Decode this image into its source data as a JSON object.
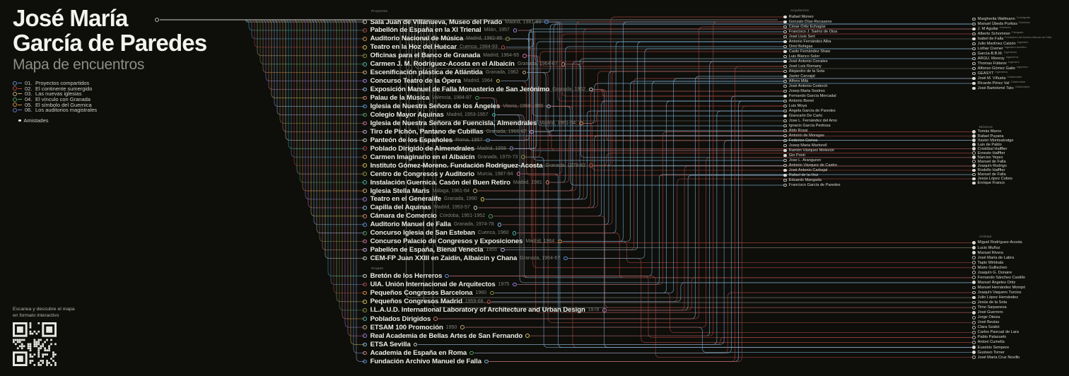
{
  "title": {
    "line1": "José María",
    "line2": "García de Paredes",
    "subtitle": "Mapa de encuentros"
  },
  "legend": {
    "items": [
      {
        "num": "01.",
        "label": "Proyectos compartidos",
        "color": "#5d8fd0"
      },
      {
        "num": "02.",
        "label": "El continente sumergido",
        "color": "#b1493f"
      },
      {
        "num": "03.",
        "label": "Las nuevas iglesias",
        "color": "#c2a878"
      },
      {
        "num": "04.",
        "label": "El vínculo con Granada",
        "color": "#4e9e5f"
      },
      {
        "num": "05.",
        "label": "El símbolo del Guernica",
        "color": "#cf8b3e"
      },
      {
        "num": "06.",
        "label": "Los auditorios magistrales",
        "color": "#6f74c9"
      }
    ],
    "friendship": {
      "label": "Amistades",
      "color": "#e8e8e2"
    }
  },
  "qr": {
    "caption_line1": "Escanea y descubre el mapa",
    "caption_line2": "en formato interactivo"
  },
  "columns": {
    "proyectos": {
      "header": "Proyectos",
      "items": [
        {
          "name": "Sala Juan de Villanueva, Museo del Prado",
          "meta": "Madrid, 1981-83"
        },
        {
          "name": "Pabellón de España en la XI Trienal",
          "meta": "Milán, 1957"
        },
        {
          "name": "Auditorio Nacional de Música",
          "meta": "Madrid, 1982-88"
        },
        {
          "name": "Teatro en la Hoz del Huécar",
          "meta": "Cuenca, 1984-93"
        },
        {
          "name": "Oficinas para el Banco de Granada",
          "meta": "Madrid, 1964-65"
        },
        {
          "name": "Carmen J. M. Rodríguez-Acosta en el Albaicín",
          "meta": "Granada, 1964-67"
        },
        {
          "name": "Escenificación plástica de Atlántida",
          "meta": "Granada, 1962"
        },
        {
          "name": "Concurso Teatro de la Ópera",
          "meta": "Madrid, 1964"
        },
        {
          "name": "Exposición Manuel de Falla Monasterio de San Jerónimo",
          "meta": "Granada, 1962"
        },
        {
          "name": "Palau de la Música",
          "meta": "Valencia, 1984-87"
        },
        {
          "name": "Iglesia de Nuestra Señora de los Ángeles",
          "meta": "Vitoria, 1958-1960"
        },
        {
          "name": "Colegio Mayor Aquinas",
          "meta": "Madrid, 1953-1957"
        },
        {
          "name": "Iglesia de Nuestra Señora de Fuencisla, Almendrales",
          "meta": "Madrid, 1961-64"
        },
        {
          "name": "Tiro de Pichón, Pantano de Cubillas",
          "meta": "Granada, 1966-67"
        },
        {
          "name": "Panteón de los Españoles",
          "meta": "Roma, 1957"
        },
        {
          "name": "Poblado Dirigido de Almendrales",
          "meta": "Madrid, 1958"
        },
        {
          "name": "Carmen Imaginario en el Albaicín",
          "meta": "Granada, 1970-73"
        },
        {
          "name": "Instituto Gómez-Moreno. Fundación Rodríguez-Acosta",
          "meta": "Granada, 1978-82"
        },
        {
          "name": "Centro de Congresos y Auditorio",
          "meta": "Murcia, 1987-94"
        },
        {
          "name": "Instalación Guernica. Casón del Buen Retiro",
          "meta": "Madrid, 1981"
        },
        {
          "name": "Iglesia Stella Maris",
          "meta": "Málaga, 1961-64"
        },
        {
          "name": "Teatro en el Generalife",
          "meta": "Granada, 1990"
        },
        {
          "name": "Capilla del Aquinas",
          "meta": "Madrid, 1953-57"
        },
        {
          "name": "Cámara de Comercio",
          "meta": "Córdoba, 1951-1952"
        },
        {
          "name": "Auditorio Manuel de Falla",
          "meta": "Granada, 1974-78"
        },
        {
          "name": "Concurso Iglesia de San Esteban",
          "meta": "Cuenca, 1960"
        },
        {
          "name": "Concurso Palacio de Congresos y Exposiciones",
          "meta": "Madrid, 1964"
        },
        {
          "name": "Pabellón de España, Bienal Venecia",
          "meta": "1955"
        },
        {
          "name": "CEM-FP Juan XXIII en Zaidín, Albaicín y Chana",
          "meta": "Granada, 1964-67"
        }
      ]
    },
    "grupos": {
      "header": "Grupos",
      "items": [
        {
          "name": "Bretón de los Herreros",
          "meta": ""
        },
        {
          "name": "UIA. Unión Internacional de Arquitectos",
          "meta": "1975"
        },
        {
          "name": "Pequeños Congresos Barcelona",
          "meta": "1960"
        },
        {
          "name": "Pequeños Congresos Madrid",
          "meta": "1959-68"
        },
        {
          "name": "I.L.A.U.D. International Laboratory of Architecture and Urban Design",
          "meta": "1978"
        },
        {
          "name": "Poblados Dirigidos",
          "meta": ""
        },
        {
          "name": "ETSAM 100 Promoción",
          "meta": "1950"
        },
        {
          "name": "Real Academia de Bellas Artes de San Fernando",
          "meta": ""
        },
        {
          "name": "ETSA Sevilla",
          "meta": ""
        },
        {
          "name": "Academia de España en Roma",
          "meta": ""
        },
        {
          "name": "Fundación Archivo Manuel de Falla",
          "meta": ""
        }
      ]
    },
    "arquitectos": {
      "header": "Arquitectos",
      "people": [
        {
          "name": "Rafael Moneo",
          "filled": true
        },
        {
          "name": "Gonzalo Díaz-Recasens",
          "filled": true
        },
        {
          "name": "César Ortiz Echagüe",
          "filled": false
        },
        {
          "name": "Francisco J. Saénz de Oiza",
          "filled": false
        },
        {
          "name": "José Lluís Sert",
          "filled": false
        },
        {
          "name": "Antonio Fernández Alba",
          "filled": true
        },
        {
          "name": "Oriol Bohigas",
          "filled": false
        },
        {
          "name": "Casto Fernández Shaw",
          "filled": true
        },
        {
          "name": "Luis Blanco Soler",
          "filled": false
        },
        {
          "name": "José Antonio Corrales",
          "filled": true
        },
        {
          "name": "José Luis Romany",
          "filled": false
        },
        {
          "name": "Alejandro de la Sota",
          "filled": false
        },
        {
          "name": "Javier Carvajal",
          "filled": true
        },
        {
          "name": "Alfons Milà",
          "filled": false
        },
        {
          "name": "José Antonio Coderch",
          "filled": false
        },
        {
          "name": "Josep Maria Sostres",
          "filled": false
        },
        {
          "name": "Fernando García Mercadal",
          "filled": true
        },
        {
          "name": "Antonio Bonet",
          "filled": false
        },
        {
          "name": "Luis Moya",
          "filled": false
        },
        {
          "name": "Ángela García de Paredes",
          "filled": false
        },
        {
          "name": "Giancarlo De Carlo",
          "filled": true
        },
        {
          "name": "Jose L. Fernández del Amo",
          "filled": false
        },
        {
          "name": "Ignacio García Pedrosa",
          "filled": false
        },
        {
          "name": "Aldo Rossi",
          "filled": false
        },
        {
          "name": "Antonio de Moragas",
          "filled": false
        },
        {
          "name": "Federico Correa",
          "filled": false
        },
        {
          "name": "Josep Maria Martorell",
          "filled": false
        },
        {
          "name": "Ramón Vázquez Molezún",
          "filled": true
        },
        {
          "name": "Gio Ponti",
          "filled": true
        },
        {
          "name": "Jose L. Aranguren",
          "filled": false
        },
        {
          "name": "Antonio Vázquez de Castro",
          "filled": false
        },
        {
          "name": "José Antonio Carbajal",
          "filled": true
        },
        {
          "name": "Rafael de la-Hoz",
          "filled": true
        },
        {
          "name": "Eduardo Mangada",
          "filled": false
        },
        {
          "name": "Francisco García de Paredes",
          "filled": false
        }
      ]
    },
    "colaboradores": {
      "header": "",
      "people": [
        {
          "name": "Margherita Wallmann",
          "role": "Coreógrafa",
          "filled": false
        },
        {
          "name": "Manuel Úbeda Purkiss",
          "role": "Dominico",
          "filled": false
        },
        {
          "name": "J. M Aguilar",
          "role": "Dominico",
          "filled": true
        },
        {
          "name": "Alberto Schommer",
          "role": "Fotógrafo",
          "filled": false
        },
        {
          "name": "Isabel de Falla",
          "role": "Fundadora del Archivo Manuel de Falla",
          "filled": true
        },
        {
          "name": "Julio Martínez Calzón",
          "role": "Ingeniero",
          "filled": false
        },
        {
          "name": "Lothar Cremer",
          "role": "Ingeniero acústico",
          "filled": false
        },
        {
          "name": "García-B.B.M.",
          "role": "Ingenieros",
          "filled": false
        },
        {
          "name": "ARGU. Monroy",
          "role": "Ingenieros",
          "filled": false
        },
        {
          "name": "Thomas Fütterer",
          "role": "Ingeniero",
          "filled": false
        },
        {
          "name": "Alfonso Gómez Gaite",
          "role": "Ingeniero",
          "filled": false
        },
        {
          "name": "GEASYT",
          "role": "Ingenieros",
          "filled": false
        },
        {
          "name": "José M. Viñuela",
          "role": "Colaborador",
          "filled": true
        },
        {
          "name": "Ricardo Pérez Val",
          "role": "Colaborador",
          "filled": true
        },
        {
          "name": "José Bartolomé Tato",
          "role": "Colaborador",
          "filled": true
        }
      ]
    },
    "musicos": {
      "header": "Músicos",
      "people": [
        {
          "name": "Tomás Marco",
          "filled": true
        },
        {
          "name": "Rafael Puyana",
          "filled": true
        },
        {
          "name": "Xavier Montsalvatge",
          "filled": true
        },
        {
          "name": "Luis de Pablo",
          "filled": true
        },
        {
          "name": "Cristóbal Halffter",
          "filled": true
        },
        {
          "name": "Ernesto Halffter",
          "filled": false
        },
        {
          "name": "Narciso Yepes",
          "filled": true
        },
        {
          "name": "Manuel de Falla",
          "filled": false
        },
        {
          "name": "Joaquín Rodrigo",
          "filled": true
        },
        {
          "name": "Rodolfo Halffter",
          "filled": true
        },
        {
          "name": "Manuel de Falla",
          "filled": false
        },
        {
          "name": "Jesús López Cobos",
          "filled": true
        },
        {
          "name": "Enrique Franco",
          "filled": true
        }
      ]
    },
    "artistas": {
      "header": "Artistas",
      "people": [
        {
          "name": "Miguel Rodríguez-Acosta",
          "filled": true
        },
        {
          "name": "Lucio Muñoz",
          "filled": true
        },
        {
          "name": "Manuel Rivera",
          "filled": true
        },
        {
          "name": "José María de Labra",
          "filled": false
        },
        {
          "name": "Tapio Wirkkala",
          "filled": false
        },
        {
          "name": "Maire Gullischen",
          "filled": false
        },
        {
          "name": "Joaquín G. Donaire",
          "filled": false
        },
        {
          "name": "Fernando Sánchez Castillo",
          "filled": false
        },
        {
          "name": "Manuel Ángeles Ortiz",
          "filled": true
        },
        {
          "name": "Manuel Hernández Mompó",
          "filled": false
        },
        {
          "name": "Joaquín Vaquero Turcios",
          "filled": false
        },
        {
          "name": "Julio López Hernández",
          "filled": true
        },
        {
          "name": "Jesús de la Sota",
          "filled": false
        },
        {
          "name": "Timo Sarpaneva",
          "filled": false
        },
        {
          "name": "José Guerrero",
          "filled": true
        },
        {
          "name": "Jorge Oteiza",
          "filled": false
        },
        {
          "name": "José Beulas",
          "filled": false
        },
        {
          "name": "Clara Szabó",
          "filled": false
        },
        {
          "name": "Carlos Pascual de Lara",
          "filled": false
        },
        {
          "name": "Pablo Palazuelo",
          "filled": false
        },
        {
          "name": "Antoni Cumella",
          "filled": false
        },
        {
          "name": "Eusebio Sempere",
          "filled": true
        },
        {
          "name": "Gustavo Torner",
          "filled": true
        },
        {
          "name": "José María Cruz Novillo",
          "filled": false
        }
      ]
    }
  },
  "palette": [
    "#c9c9c1",
    "#49b5a4",
    "#5d8fd0",
    "#b1493f",
    "#c2a878",
    "#4e9e5f",
    "#cf8b3e",
    "#9a7fd6",
    "#cf6fa6",
    "#d3c457",
    "#7fb6d9",
    "#b4a9e0",
    "#8b8f3c",
    "#c97f6b"
  ]
}
